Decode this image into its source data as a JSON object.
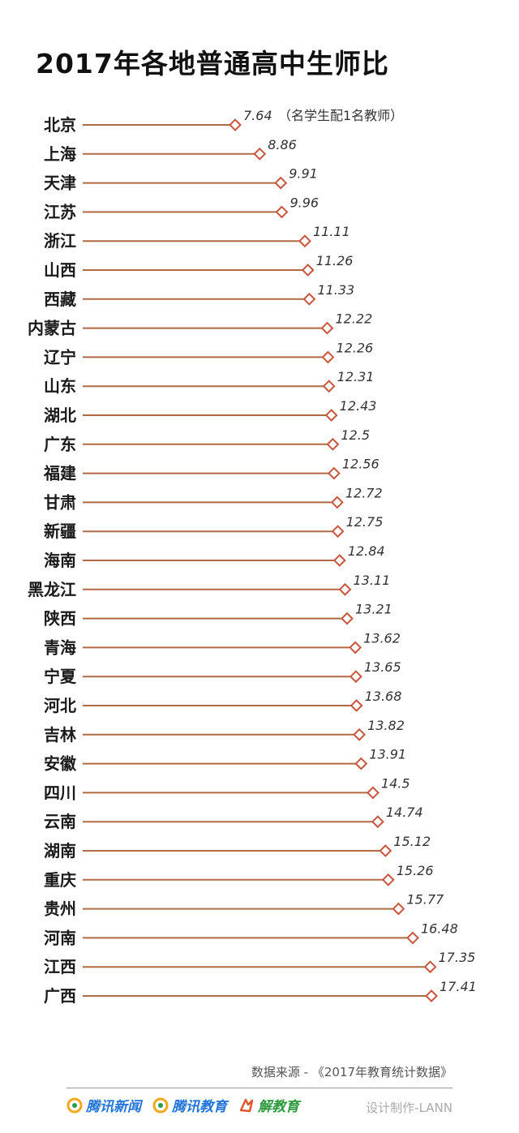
{
  "title": "2017年各地普通高中生师比",
  "chart_data": {
    "type": "dot",
    "title": "2017年各地普通高中生师比",
    "annotation": "（名学生配1名教师）",
    "categories": [
      "北京",
      "上海",
      "天津",
      "江苏",
      "浙江",
      "山西",
      "西藏",
      "内蒙古",
      "辽宁",
      "山东",
      "湖北",
      "广东",
      "福建",
      "甘肃",
      "新疆",
      "海南",
      "黑龙江",
      "陕西",
      "青海",
      "宁夏",
      "河北",
      "吉林",
      "安徽",
      "四川",
      "云南",
      "湖南",
      "重庆",
      "贵州",
      "河南",
      "江西",
      "广西"
    ],
    "values": [
      7.64,
      8.86,
      9.91,
      9.96,
      11.11,
      11.26,
      11.33,
      12.22,
      12.26,
      12.31,
      12.43,
      12.5,
      12.56,
      12.72,
      12.75,
      12.84,
      13.11,
      13.21,
      13.62,
      13.65,
      13.68,
      13.82,
      13.91,
      14.5,
      14.74,
      15.12,
      15.26,
      15.77,
      16.48,
      17.35,
      17.41
    ],
    "value_labels": [
      "7.64",
      "8.86",
      "9.91",
      "9.96",
      "11.11",
      "11.26",
      "11.33",
      "12.22",
      "12.26",
      "12.31",
      "12.43",
      "12.5",
      "12.56",
      "12.72",
      "12.75",
      "12.84",
      "13.11",
      "13.21",
      "13.62",
      "13.65",
      "13.68",
      "13.82",
      "13.91",
      "14.5",
      "14.74",
      "15.12",
      "15.26",
      "15.77",
      "16.48",
      "17.35",
      "17.41"
    ],
    "xlabel": "",
    "ylabel": "",
    "grid": false,
    "legend": "none",
    "colors": {
      "line": "#b06a45",
      "track_start": "#d8b9a6",
      "track_end": "#f3e7df",
      "marker": "#c9553d"
    }
  },
  "footer": {
    "source": "数据来源 - 《2017年教育统计数据》",
    "credit": "设计制作-LANN",
    "logos": [
      {
        "name": "腾讯新闻",
        "icon": "tencent-news-icon"
      },
      {
        "name": "腾讯教育",
        "icon": "tencent-edu-icon"
      },
      {
        "name": "解教育",
        "icon": "jie-edu-icon"
      }
    ]
  }
}
